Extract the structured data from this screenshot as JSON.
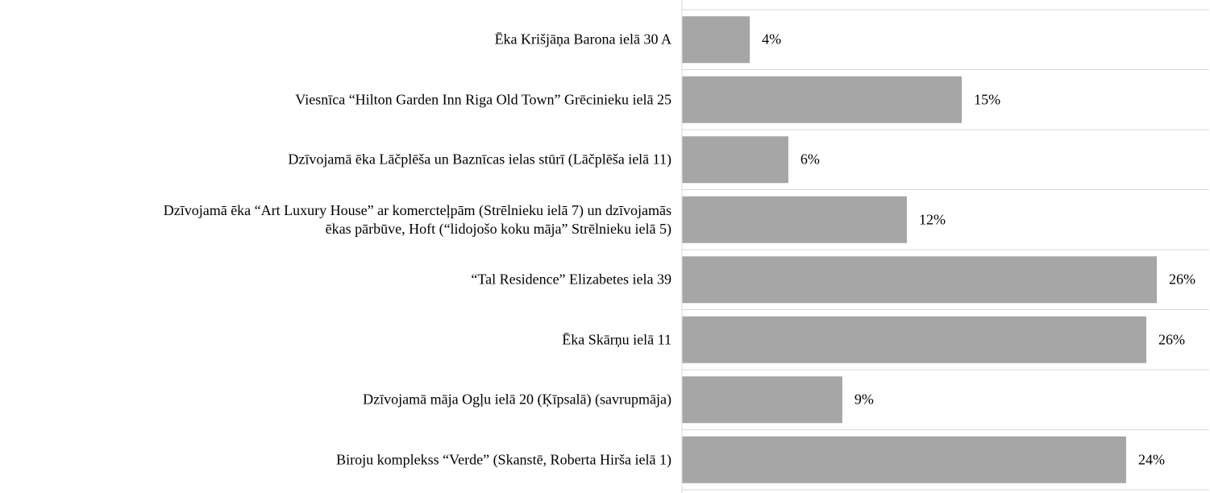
{
  "chart_data": {
    "type": "bar",
    "orientation": "horizontal",
    "categories": [
      "Ēka Krišjāņa Barona ielā 30 A",
      "Viesnīca “Hilton Garden Inn Riga Old Town” Grēcinieku ielā 25",
      "Dzīvojamā ēka Lāčplēša un Baznīcas ielas stūrī (Lāčplēša ielā 11)",
      "Dzīvojamā ēka “Art Luxury House” ar komercteļpām (Strēlnieku ielā 7) un dzīvojamās\nēkas pārbūve, Hoft (“lidojošo koku māja” Strēlnieku ielā 5)",
      "“Tal Residence” Elizabetes iela 39",
      "Ēka Skārņu ielā 11",
      "Dzīvojamā māja Ogļu ielā 20 (Ķīpsalā) (savrupmāja)",
      "Biroju komplekss “Verde” (Skanstē, Roberta Hirša ielā 1)"
    ],
    "values": [
      3.73,
      15.39,
      5.85,
      12.37,
      26.12,
      25.54,
      8.82,
      24.43
    ],
    "value_labels": [
      "4%",
      "15%",
      "6%",
      "12%",
      "26%",
      "26%",
      "9%",
      "24%"
    ],
    "color": "#a6a6a6",
    "xlim": [
      0,
      29
    ]
  }
}
